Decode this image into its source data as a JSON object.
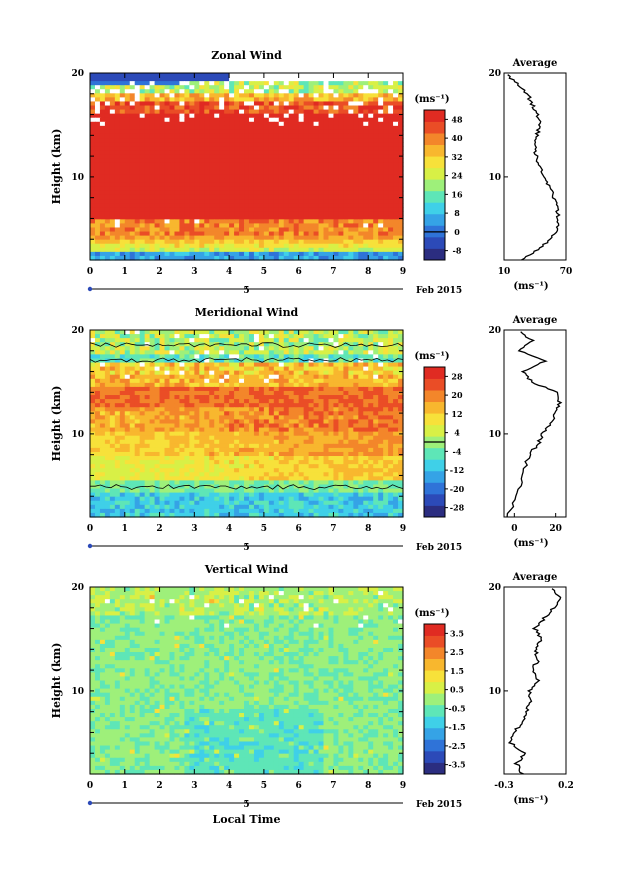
{
  "chart_data": [
    {
      "type": "heatmap",
      "title": "Zonal Wind",
      "ylabel": "Height (km)",
      "unit_label": "(ms⁻¹)",
      "date_label": "Feb 2015",
      "date_day": "5",
      "xticks": [
        "0",
        "1",
        "2",
        "3",
        "4",
        "5",
        "6",
        "7",
        "8",
        "9"
      ],
      "yticks": [
        "10",
        "20"
      ],
      "xlim": [
        0,
        9
      ],
      "ylim": [
        2,
        20
      ],
      "colorbar": {
        "ticks": [
          "48",
          "40",
          "32",
          "24",
          "16",
          "8",
          "0",
          "-8"
        ],
        "min": -12,
        "max": 52,
        "contour": 0
      },
      "profile_values": [
        [
          0.3,
          2
        ],
        [
          0.55,
          3
        ],
        [
          0.75,
          4
        ],
        [
          0.85,
          5
        ],
        [
          0.88,
          6
        ],
        [
          0.85,
          7
        ],
        [
          0.8,
          8
        ],
        [
          0.74,
          9
        ],
        [
          0.66,
          10
        ],
        [
          0.58,
          11
        ],
        [
          0.52,
          12
        ],
        [
          0.5,
          13
        ],
        [
          0.53,
          14
        ],
        [
          0.58,
          15
        ],
        [
          0.54,
          16
        ],
        [
          0.45,
          17
        ],
        [
          0.38,
          18
        ],
        [
          0.2,
          19
        ],
        [
          0.03,
          20
        ]
      ],
      "average": {
        "title": "Average",
        "xticks": [
          "10",
          "70"
        ],
        "yticks": [
          "10",
          "20"
        ],
        "unit_label": "(ms⁻¹)",
        "xlim": [
          10,
          70
        ],
        "ylim": [
          2,
          20
        ]
      }
    },
    {
      "type": "heatmap",
      "title": "Meridional Wind",
      "ylabel": "Height (km)",
      "unit_label": "(ms⁻¹)",
      "date_label": "Feb 2015",
      "date_day": "5",
      "xticks": [
        "0",
        "1",
        "2",
        "3",
        "4",
        "5",
        "6",
        "7",
        "8",
        "9"
      ],
      "yticks": [
        "10",
        "20"
      ],
      "xlim": [
        0,
        9
      ],
      "ylim": [
        2,
        20
      ],
      "colorbar": {
        "ticks": [
          "28",
          "20",
          "12",
          "4",
          "-4",
          "-12",
          "-20",
          "-28"
        ],
        "min": -32,
        "max": 32,
        "contour": 0
      },
      "profile_values": [
        [
          0.05,
          2
        ],
        [
          0.2,
          4
        ],
        [
          0.3,
          6
        ],
        [
          0.4,
          8
        ],
        [
          0.55,
          9
        ],
        [
          0.62,
          10
        ],
        [
          0.75,
          11
        ],
        [
          0.82,
          12
        ],
        [
          0.9,
          13
        ],
        [
          0.85,
          14
        ],
        [
          0.45,
          15
        ],
        [
          0.3,
          16
        ],
        [
          0.65,
          17
        ],
        [
          0.25,
          18
        ],
        [
          0.45,
          19
        ],
        [
          0.2,
          20
        ]
      ],
      "average": {
        "title": "Average",
        "xticks": [
          "0",
          "20"
        ],
        "yticks": [
          "10",
          "20"
        ],
        "unit_label": "(ms⁻¹)",
        "xlim": [
          -5,
          25
        ],
        "ylim": [
          2,
          20
        ]
      }
    },
    {
      "type": "heatmap",
      "title": "Vertical Wind",
      "ylabel": "Height (km)",
      "xlabel": "Local Time",
      "unit_label": "(ms⁻¹)",
      "date_label": "Feb 2015",
      "date_day": "5",
      "xticks": [
        "0",
        "1",
        "2",
        "3",
        "4",
        "5",
        "6",
        "7",
        "8",
        "9"
      ],
      "yticks": [
        "10",
        "20"
      ],
      "xlim": [
        0,
        9
      ],
      "ylim": [
        2,
        20
      ],
      "colorbar": {
        "ticks": [
          "3.5",
          "2.5",
          "1.5",
          "0.5",
          "-0.5",
          "-1.5",
          "-2.5",
          "-3.5"
        ],
        "min": -4,
        "max": 4,
        "contour": null
      },
      "profile_values": [
        [
          0.3,
          2
        ],
        [
          0.2,
          3
        ],
        [
          0.35,
          4
        ],
        [
          0.1,
          5
        ],
        [
          0.15,
          6
        ],
        [
          0.3,
          7
        ],
        [
          0.35,
          8
        ],
        [
          0.45,
          9
        ],
        [
          0.4,
          10
        ],
        [
          0.55,
          11
        ],
        [
          0.45,
          12
        ],
        [
          0.55,
          13
        ],
        [
          0.5,
          14
        ],
        [
          0.6,
          15
        ],
        [
          0.5,
          16
        ],
        [
          0.65,
          17
        ],
        [
          0.8,
          18
        ],
        [
          0.9,
          19
        ],
        [
          0.75,
          20
        ]
      ],
      "average": {
        "title": "Average",
        "xticks": [
          "-0.3",
          "0.2"
        ],
        "yticks": [
          "10",
          "20"
        ],
        "unit_label": "(ms⁻¹)",
        "xlim": [
          -0.3,
          0.2
        ],
        "ylim": [
          2,
          20
        ]
      }
    }
  ],
  "colors": {
    "palette": [
      "#2b2d80",
      "#2c4ab8",
      "#2f73d8",
      "#35a3e6",
      "#3fd0e8",
      "#5ee6b7",
      "#9ef07a",
      "#d8f046",
      "#f7e13a",
      "#f8b72e",
      "#f3862a",
      "#ea4d26",
      "#e02b22"
    ],
    "contour": "#000000",
    "axis": "#000000",
    "date_marker": "#2c4ab8"
  }
}
